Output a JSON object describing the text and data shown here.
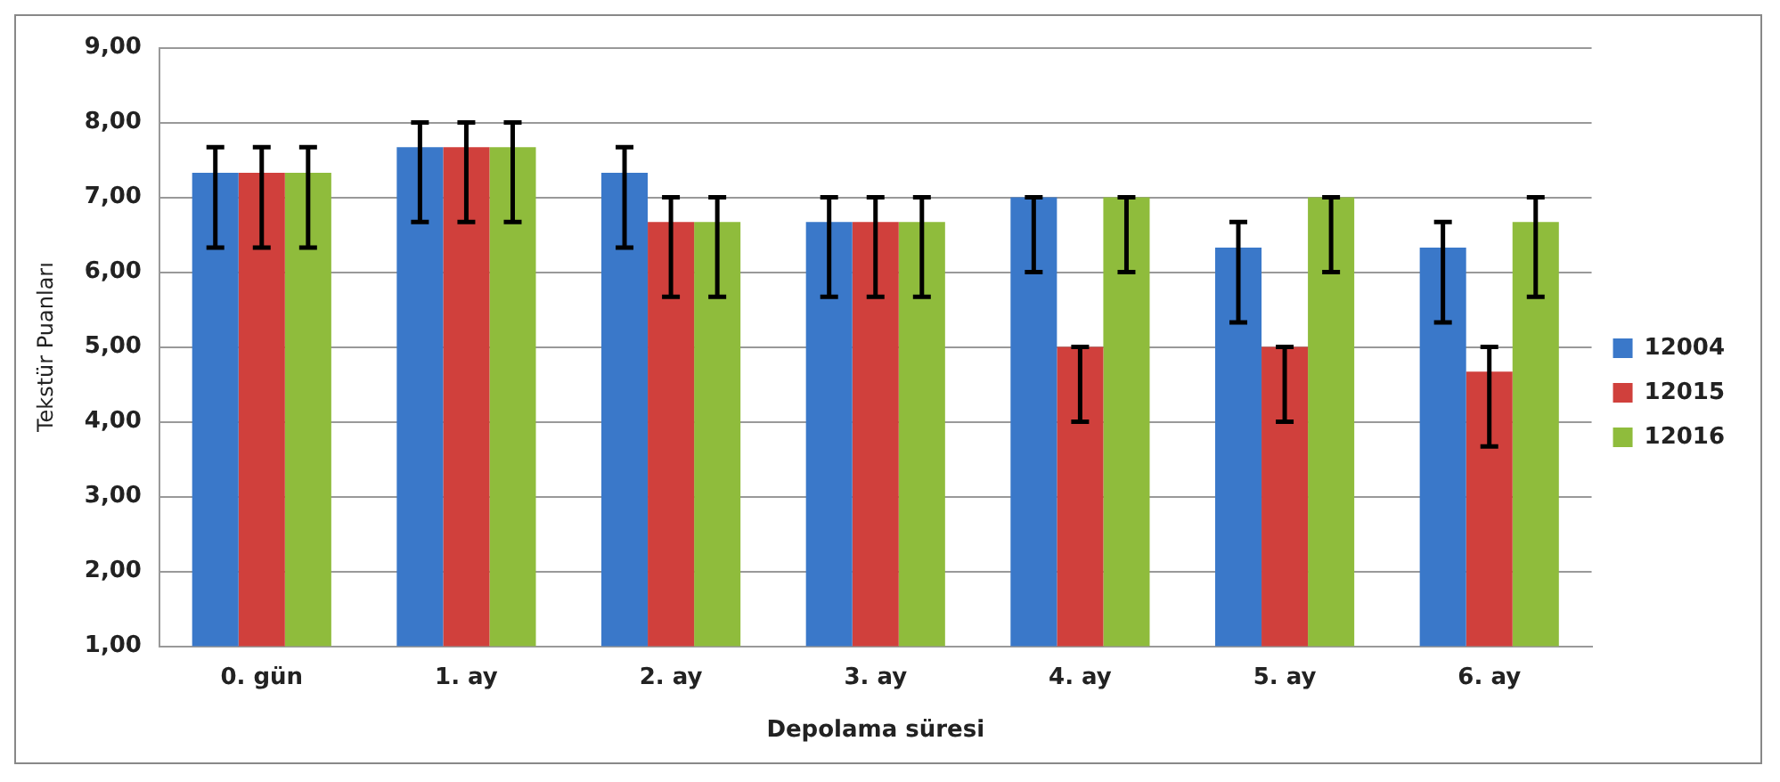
{
  "chart_data": {
    "type": "bar",
    "xlabel": "Depolama süresi",
    "ylabel": "Tekstür Puanları",
    "categories": [
      "0. gün",
      "1. ay",
      "2. ay",
      "3. ay",
      "4. ay",
      "5. ay",
      "6. ay"
    ],
    "series": [
      {
        "name": "12004",
        "color": "#3a78c9",
        "values": [
          7.33,
          7.67,
          7.33,
          6.67,
          7.0,
          6.33,
          6.33
        ],
        "errors": [
          [
            6.33,
            7.67
          ],
          [
            6.67,
            8.0
          ],
          [
            6.33,
            7.67
          ],
          [
            5.67,
            7.0
          ],
          [
            6.0,
            7.0
          ],
          [
            5.33,
            6.67
          ],
          [
            5.33,
            6.67
          ]
        ]
      },
      {
        "name": "12015",
        "color": "#d0403c",
        "values": [
          7.33,
          7.67,
          6.67,
          6.67,
          5.0,
          5.0,
          4.67
        ],
        "errors": [
          [
            6.33,
            7.67
          ],
          [
            6.67,
            8.0
          ],
          [
            5.67,
            7.0
          ],
          [
            5.67,
            7.0
          ],
          [
            4.0,
            5.0
          ],
          [
            4.0,
            5.0
          ],
          [
            3.67,
            5.0
          ]
        ]
      },
      {
        "name": "12016",
        "color": "#8fbc3c",
        "values": [
          7.33,
          7.67,
          6.67,
          6.67,
          7.0,
          7.0,
          6.67
        ],
        "errors": [
          [
            6.33,
            7.67
          ],
          [
            6.67,
            8.0
          ],
          [
            5.67,
            7.0
          ],
          [
            5.67,
            7.0
          ],
          [
            6.0,
            7.0
          ],
          [
            6.0,
            7.0
          ],
          [
            5.67,
            7.0
          ]
        ]
      }
    ],
    "ylim": [
      1,
      9
    ],
    "yticks": [
      {
        "value": 1,
        "label": "1,00"
      },
      {
        "value": 2,
        "label": "2,00"
      },
      {
        "value": 3,
        "label": "3,00"
      },
      {
        "value": 4,
        "label": "4,00"
      },
      {
        "value": 5,
        "label": "5,00"
      },
      {
        "value": 6,
        "label": "6,00"
      },
      {
        "value": 7,
        "label": "7,00"
      },
      {
        "value": 8,
        "label": "8,00"
      },
      {
        "value": 9,
        "label": "9,00"
      }
    ],
    "grid": "y",
    "legend": "right"
  }
}
